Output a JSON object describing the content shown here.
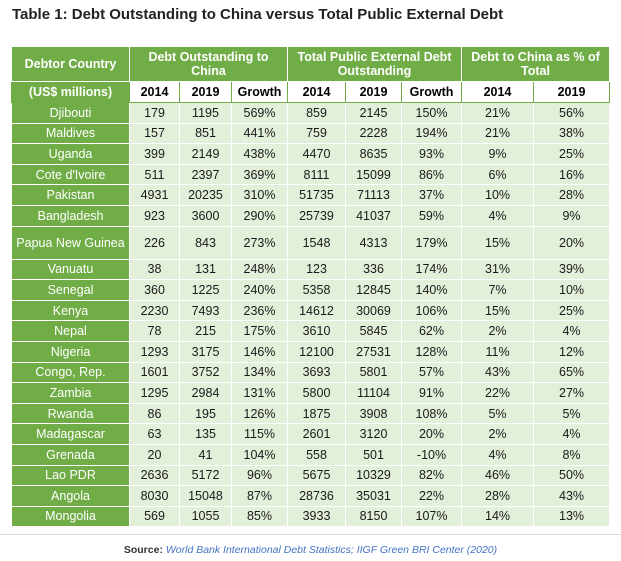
{
  "title": "Table 1: Debt Outstanding to China versus Total Public External Debt",
  "header": {
    "debtor_country": "Debtor Country",
    "group_china": "Debt Outstanding to China",
    "group_total": "Total Public External Debt Outstanding",
    "group_pct": "Debt to China as % of Total",
    "unit": "(US$ millions)",
    "cols": [
      "2014",
      "2019",
      "Growth",
      "2014",
      "2019",
      "Growth",
      "2014",
      "2019"
    ]
  },
  "rows": [
    [
      "Djibouti",
      "179",
      "1195",
      "569%",
      "859",
      "2145",
      "150%",
      "21%",
      "56%"
    ],
    [
      "Maldives",
      "157",
      "851",
      "441%",
      "759",
      "2228",
      "194%",
      "21%",
      "38%"
    ],
    [
      "Uganda",
      "399",
      "2149",
      "438%",
      "4470",
      "8635",
      "93%",
      "9%",
      "25%"
    ],
    [
      "Cote d'Ivoire",
      "511",
      "2397",
      "369%",
      "8111",
      "15099",
      "86%",
      "6%",
      "16%"
    ],
    [
      "Pakistan",
      "4931",
      "20235",
      "310%",
      "51735",
      "71113",
      "37%",
      "10%",
      "28%"
    ],
    [
      "Bangladesh",
      "923",
      "3600",
      "290%",
      "25739",
      "41037",
      "59%",
      "4%",
      "9%"
    ],
    [
      "Papua New Guinea",
      "226",
      "843",
      "273%",
      "1548",
      "4313",
      "179%",
      "15%",
      "20%"
    ],
    [
      "Vanuatu",
      "38",
      "131",
      "248%",
      "123",
      "336",
      "174%",
      "31%",
      "39%"
    ],
    [
      "Senegal",
      "360",
      "1225",
      "240%",
      "5358",
      "12845",
      "140%",
      "7%",
      "10%"
    ],
    [
      "Kenya",
      "2230",
      "7493",
      "236%",
      "14612",
      "30069",
      "106%",
      "15%",
      "25%"
    ],
    [
      "Nepal",
      "78",
      "215",
      "175%",
      "3610",
      "5845",
      "62%",
      "2%",
      "4%"
    ],
    [
      "Nigeria",
      "1293",
      "3175",
      "146%",
      "12100",
      "27531",
      "128%",
      "11%",
      "12%"
    ],
    [
      "Congo, Rep.",
      "1601",
      "3752",
      "134%",
      "3693",
      "5801",
      "57%",
      "43%",
      "65%"
    ],
    [
      "Zambia",
      "1295",
      "2984",
      "131%",
      "5800",
      "11104",
      "91%",
      "22%",
      "27%"
    ],
    [
      "Rwanda",
      "86",
      "195",
      "126%",
      "1875",
      "3908",
      "108%",
      "5%",
      "5%"
    ],
    [
      "Madagascar",
      "63",
      "135",
      "115%",
      "2601",
      "3120",
      "20%",
      "2%",
      "4%"
    ],
    [
      "Grenada",
      "20",
      "41",
      "104%",
      "558",
      "501",
      "-10%",
      "4%",
      "8%"
    ],
    [
      "Lao PDR",
      "2636",
      "5172",
      "96%",
      "5675",
      "10329",
      "82%",
      "46%",
      "50%"
    ],
    [
      "Angola",
      "8030",
      "15048",
      "87%",
      "28736",
      "35031",
      "22%",
      "28%",
      "43%"
    ],
    [
      "Mongolia",
      "569",
      "1055",
      "85%",
      "3933",
      "8150",
      "107%",
      "14%",
      "13%"
    ]
  ],
  "source": {
    "label": "Source:",
    "text": "World Bank International Debt Statistics; IIGF Green BRI Center (2020)"
  },
  "colors": {
    "header_green": "#70ad47",
    "row_light_green": "#e2efd9",
    "source_link_blue": "#4472c4"
  }
}
